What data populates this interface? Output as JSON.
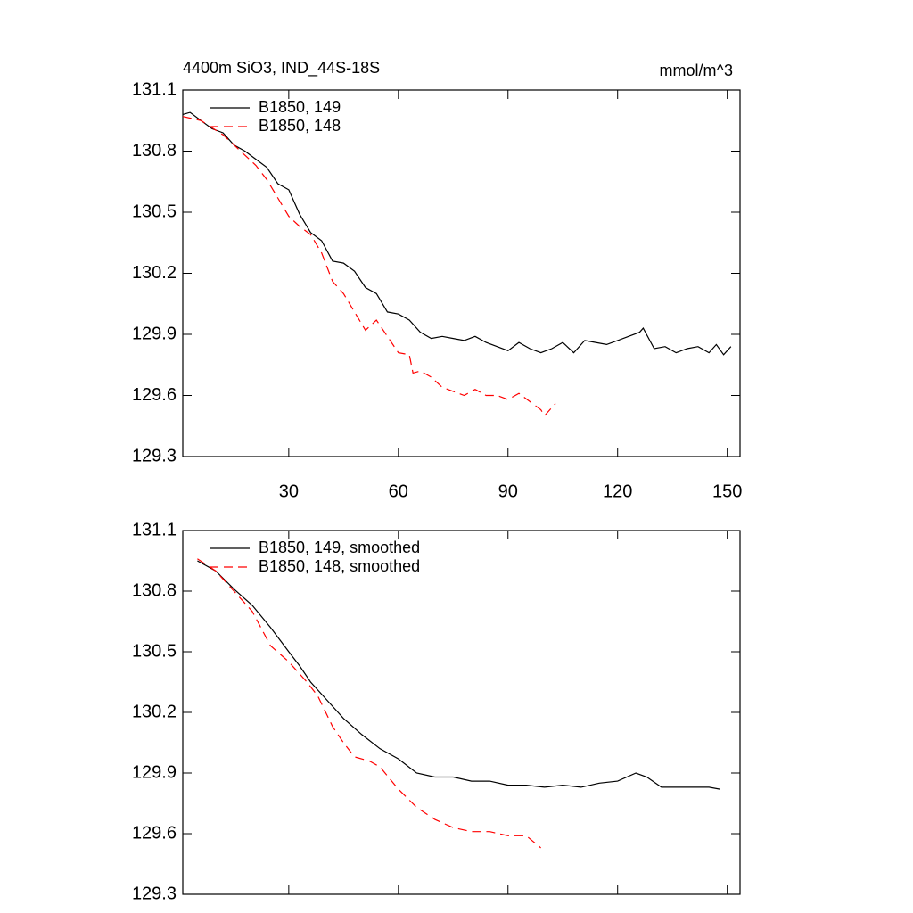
{
  "chart_data": [
    {
      "type": "line",
      "title": "4400m SiO3, IND_44S-18S",
      "units": "mmol/m^3",
      "xlim": [
        1,
        153.5
      ],
      "xticks": [
        30,
        60,
        90,
        120,
        150
      ],
      "xtick_labels": true,
      "ylim": [
        129.3,
        131.1
      ],
      "yticks": [
        {
          "value": 129.3,
          "label": "129.3"
        },
        {
          "value": 129.6,
          "label": "129.6"
        },
        {
          "value": 129.9,
          "label": "129.9"
        },
        {
          "value": 130.2,
          "label": "130.2"
        },
        {
          "value": 130.5,
          "label": "130.5"
        },
        {
          "value": 130.8,
          "label": "130.8"
        },
        {
          "value": 131.1,
          "label": "131.1"
        }
      ],
      "series": [
        {
          "name": "B1850, 149",
          "color": "#000000",
          "dash": false,
          "x": [
            1,
            3,
            6,
            9,
            12,
            15,
            18,
            21,
            24,
            27,
            30,
            33,
            36,
            39,
            42,
            45,
            48,
            51,
            54,
            57,
            60,
            63,
            66,
            69,
            72,
            75,
            78,
            81,
            84,
            87,
            90,
            93,
            96,
            99,
            102,
            105,
            108,
            111,
            114,
            117,
            120,
            123,
            126,
            127,
            130,
            133,
            136,
            139,
            142,
            145,
            147,
            149,
            151
          ],
          "values": [
            130.98,
            130.99,
            130.95,
            130.91,
            130.89,
            130.83,
            130.8,
            130.76,
            130.72,
            130.64,
            130.61,
            130.49,
            130.4,
            130.36,
            130.26,
            130.25,
            130.21,
            130.13,
            130.1,
            130.01,
            130.0,
            129.97,
            129.91,
            129.88,
            129.89,
            129.88,
            129.87,
            129.89,
            129.86,
            129.84,
            129.82,
            129.86,
            129.83,
            129.81,
            129.83,
            129.86,
            129.81,
            129.87,
            129.86,
            129.85,
            129.87,
            129.89,
            129.91,
            129.93,
            129.83,
            129.84,
            129.81,
            129.83,
            129.84,
            129.81,
            129.85,
            129.8,
            129.84
          ]
        },
        {
          "name": "B1850, 148",
          "color": "#ff0000",
          "dash": true,
          "x": [
            1,
            6,
            12,
            15,
            18,
            21,
            24,
            27,
            30,
            33,
            36,
            39,
            42,
            45,
            48,
            51,
            54,
            57,
            60,
            63,
            64,
            66,
            69,
            72,
            75,
            78,
            81,
            84,
            87,
            90,
            93,
            96,
            99,
            100,
            103
          ],
          "values": [
            130.97,
            130.95,
            130.88,
            130.83,
            130.78,
            130.73,
            130.66,
            130.57,
            130.48,
            130.43,
            130.39,
            130.3,
            130.16,
            130.1,
            130.01,
            129.92,
            129.97,
            129.89,
            129.81,
            129.8,
            129.71,
            129.72,
            129.69,
            129.64,
            129.62,
            129.6,
            129.63,
            129.6,
            129.6,
            129.58,
            129.61,
            129.57,
            129.53,
            129.5,
            129.56
          ]
        }
      ]
    },
    {
      "type": "line",
      "xlim": [
        1,
        153.5
      ],
      "xticks": [
        30,
        60,
        90,
        120,
        150
      ],
      "xtick_labels": false,
      "ylim": [
        129.3,
        131.1
      ],
      "yticks": [
        {
          "value": 129.3,
          "label": "129.3"
        },
        {
          "value": 129.6,
          "label": "129.6"
        },
        {
          "value": 129.9,
          "label": "129.9"
        },
        {
          "value": 130.2,
          "label": "130.2"
        },
        {
          "value": 130.5,
          "label": "130.5"
        },
        {
          "value": 130.8,
          "label": "130.8"
        },
        {
          "value": 131.1,
          "label": "131.1"
        }
      ],
      "series": [
        {
          "name": "B1850, 149, smoothed",
          "color": "#000000",
          "dash": false,
          "x": [
            5,
            10,
            15,
            20,
            25,
            30,
            33,
            36,
            40,
            45,
            50,
            55,
            60,
            65,
            70,
            75,
            80,
            85,
            90,
            95,
            100,
            105,
            110,
            115,
            120,
            125,
            128,
            132,
            136,
            140,
            145,
            148
          ],
          "values": [
            130.95,
            130.9,
            130.81,
            130.73,
            130.62,
            130.5,
            130.43,
            130.35,
            130.27,
            130.17,
            130.09,
            130.02,
            129.97,
            129.9,
            129.88,
            129.88,
            129.86,
            129.86,
            129.84,
            129.84,
            129.83,
            129.84,
            129.83,
            129.85,
            129.86,
            129.9,
            129.88,
            129.83,
            129.83,
            129.83,
            129.83,
            129.82
          ]
        },
        {
          "name": "B1850, 148, smoothed",
          "color": "#ff0000",
          "dash": true,
          "x": [
            5,
            10,
            15,
            20,
            25,
            30,
            35,
            38,
            42,
            45,
            48,
            52,
            55,
            60,
            65,
            70,
            75,
            80,
            85,
            90,
            95,
            99
          ],
          "values": [
            130.96,
            130.9,
            130.8,
            130.7,
            130.53,
            130.45,
            130.35,
            130.28,
            130.13,
            130.05,
            129.98,
            129.96,
            129.93,
            129.82,
            129.73,
            129.67,
            129.63,
            129.61,
            129.61,
            129.59,
            129.59,
            129.53
          ]
        }
      ]
    }
  ]
}
